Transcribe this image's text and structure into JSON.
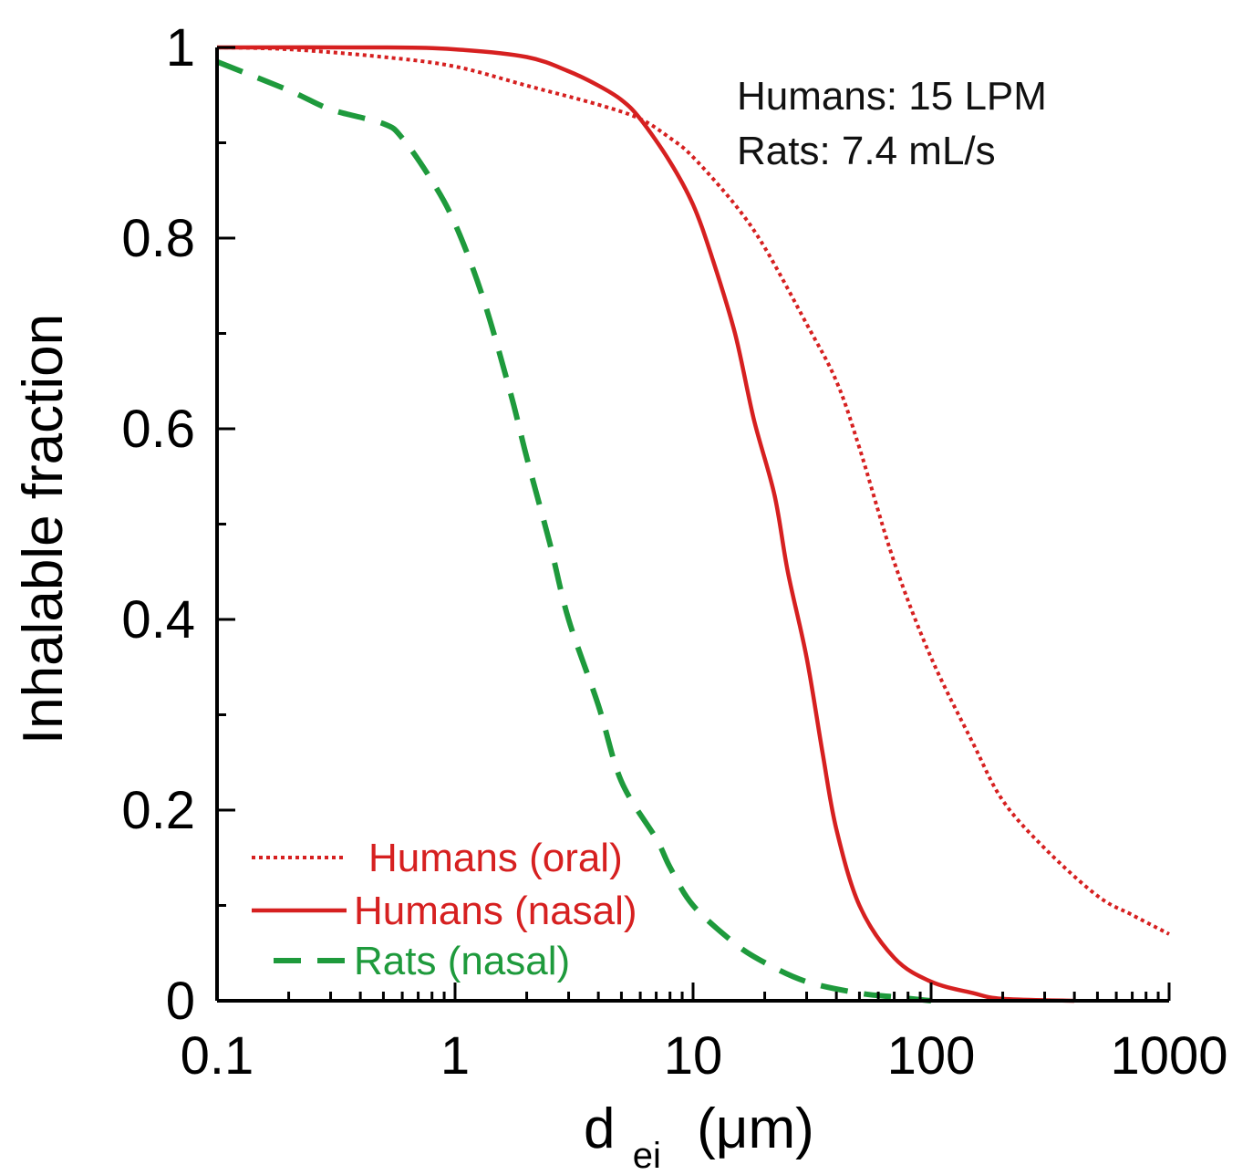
{
  "chart_data": {
    "type": "line",
    "title": "",
    "xlabel": {
      "main": "d",
      "sub": "ei",
      "unit": "(μm)"
    },
    "ylabel": "Inhalable fraction",
    "x_scale": "log",
    "xlim": [
      0.1,
      1000
    ],
    "ylim": [
      0,
      1
    ],
    "x_ticks": [
      "0.1",
      "1",
      "10",
      "100",
      "1000"
    ],
    "y_ticks": [
      "0",
      "0.2",
      "0.4",
      "0.6",
      "0.8",
      "1"
    ],
    "grid": false,
    "annotations": [
      "Humans: 15 LPM",
      "Rats: 7.4 mL/s"
    ],
    "legend_position": "bottom-left",
    "series": [
      {
        "name": "Humans (oral)",
        "style": "dotted",
        "color": "#d62020",
        "points": [
          [
            0.1,
            1.0
          ],
          [
            0.2,
            0.998
          ],
          [
            0.5,
            0.99
          ],
          [
            1,
            0.98
          ],
          [
            2,
            0.96
          ],
          [
            4,
            0.94
          ],
          [
            6,
            0.925
          ],
          [
            8,
            0.905
          ],
          [
            10,
            0.885
          ],
          [
            15,
            0.835
          ],
          [
            20,
            0.79
          ],
          [
            30,
            0.71
          ],
          [
            40,
            0.65
          ],
          [
            50,
            0.58
          ],
          [
            70,
            0.46
          ],
          [
            100,
            0.36
          ],
          [
            150,
            0.27
          ],
          [
            200,
            0.21
          ],
          [
            300,
            0.16
          ],
          [
            500,
            0.11
          ],
          [
            700,
            0.09
          ],
          [
            1000,
            0.07
          ]
        ]
      },
      {
        "name": "Humans (nasal)",
        "style": "solid",
        "color": "#d62020",
        "points": [
          [
            0.1,
            1.0
          ],
          [
            0.5,
            1.0
          ],
          [
            1,
            0.998
          ],
          [
            2,
            0.99
          ],
          [
            3,
            0.975
          ],
          [
            4,
            0.96
          ],
          [
            5,
            0.945
          ],
          [
            6,
            0.925
          ],
          [
            8,
            0.88
          ],
          [
            10,
            0.835
          ],
          [
            12,
            0.78
          ],
          [
            15,
            0.7
          ],
          [
            18,
            0.61
          ],
          [
            22,
            0.53
          ],
          [
            25,
            0.45
          ],
          [
            30,
            0.36
          ],
          [
            35,
            0.26
          ],
          [
            40,
            0.18
          ],
          [
            50,
            0.1
          ],
          [
            70,
            0.045
          ],
          [
            100,
            0.02
          ],
          [
            150,
            0.008
          ],
          [
            200,
            0.002
          ],
          [
            400,
            0.0
          ]
        ]
      },
      {
        "name": "Rats (nasal)",
        "style": "dashed",
        "color": "#1e9a3c",
        "points": [
          [
            0.1,
            0.985
          ],
          [
            0.2,
            0.955
          ],
          [
            0.3,
            0.935
          ],
          [
            0.5,
            0.92
          ],
          [
            0.6,
            0.905
          ],
          [
            0.8,
            0.86
          ],
          [
            1,
            0.815
          ],
          [
            1.3,
            0.74
          ],
          [
            1.7,
            0.64
          ],
          [
            2,
            0.57
          ],
          [
            2.5,
            0.48
          ],
          [
            3,
            0.4
          ],
          [
            4,
            0.31
          ],
          [
            5,
            0.23
          ],
          [
            7,
            0.17
          ],
          [
            8,
            0.14
          ],
          [
            10,
            0.1
          ],
          [
            15,
            0.06
          ],
          [
            20,
            0.04
          ],
          [
            30,
            0.02
          ],
          [
            50,
            0.008
          ],
          [
            70,
            0.004
          ],
          [
            100,
            0.0
          ]
        ]
      }
    ]
  }
}
